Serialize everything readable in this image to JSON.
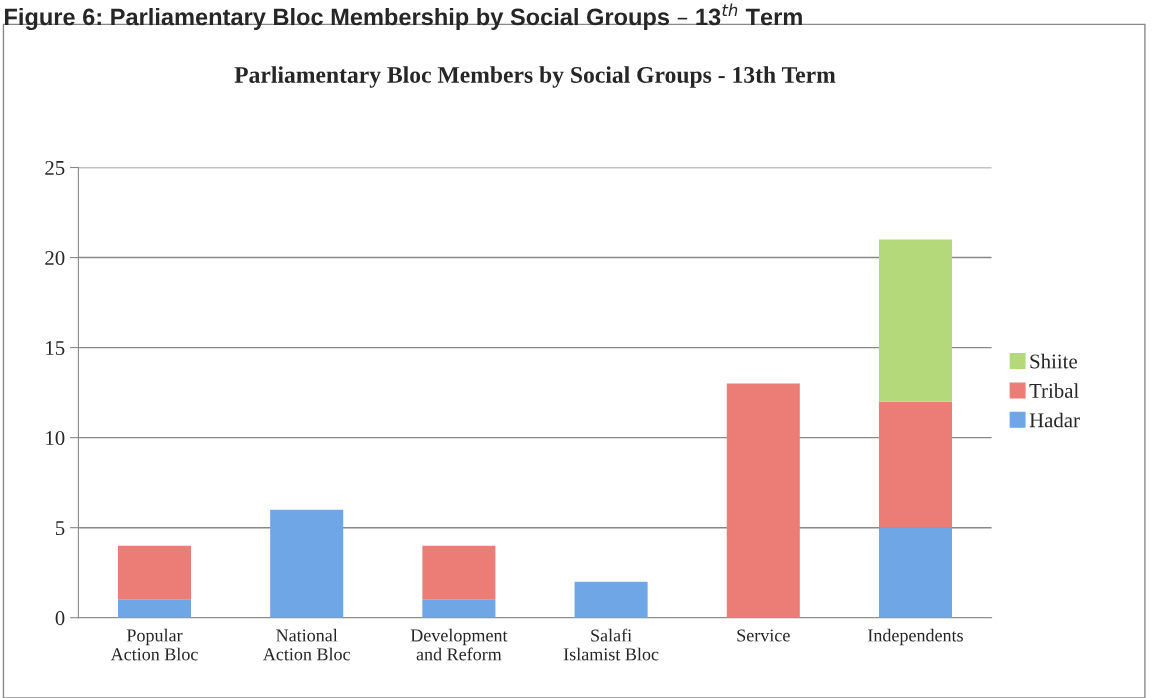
{
  "chart_data": {
    "type": "bar",
    "title": "Parliamentary Bloc Members by Social Groups - 13th Term",
    "annotations": [
      "Figure 6: Parliamentary Bloc Membership by Social Groups – 13$^{th}$ Term"
    ],
    "categories": [
      "Popular Action Bloc",
      "National Action Bloc",
      "Development and Reform",
      "Salafi Islamist Bloc",
      "Service",
      "Independents"
    ],
    "series": [
      {
        "name": "Hadar",
        "color": "#6fa6e6",
        "values": [
          1,
          6,
          1,
          2,
          null,
          5
        ]
      },
      {
        "name": "Tribal",
        "color": "#ec7d76",
        "values": [
          3,
          null,
          3,
          null,
          13,
          7
        ]
      },
      {
        "name": "Shiite",
        "color": "#b3d97a",
        "values": [
          null,
          null,
          null,
          null,
          null,
          9
        ]
      }
    ],
    "stacked": true,
    "ylim": [
      0,
      25
    ],
    "yticks": [
      0,
      5,
      10,
      15,
      20,
      25
    ],
    "grid": "y",
    "legend": "right"
  }
}
